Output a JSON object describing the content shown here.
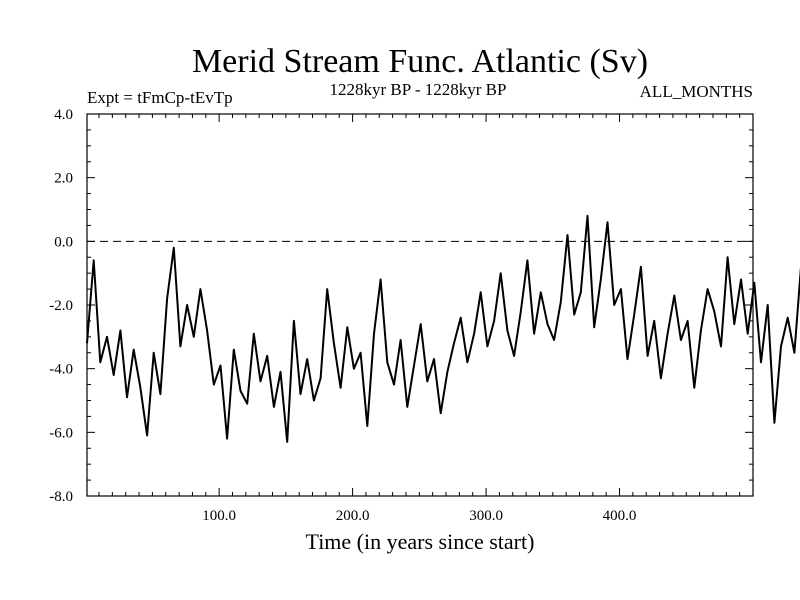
{
  "chart_data": {
    "type": "line",
    "title": "Merid Stream Func. Atlantic (Sv)",
    "subtitle_left": "Expt = tFmCp-tEvTp",
    "subtitle_center": "1228kyr BP - 1228kyr BP",
    "subtitle_right": "ALL_MONTHS",
    "xlabel": "Time (in years since start)",
    "ylabel": "",
    "xlim": [
      1,
      500
    ],
    "ylim": [
      -8,
      4
    ],
    "x_ticks": [
      100,
      200,
      300,
      400
    ],
    "x_tick_labels": [
      "100.0",
      "200.0",
      "300.0",
      "400.0"
    ],
    "y_ticks": [
      -8,
      -6,
      -4,
      -2,
      0,
      2,
      4
    ],
    "y_tick_labels": [
      "-8.0",
      "-6.0",
      "-4.0",
      "-2.0",
      "0.0",
      "2.0",
      "4.0"
    ],
    "reference_line": 0,
    "series": [
      {
        "name": "Merid Stream Func. Atlantic",
        "color": "#000000",
        "x_start": 1,
        "x_step": 5,
        "values": [
          -3.2,
          -0.6,
          -3.8,
          -3.0,
          -4.2,
          -2.8,
          -4.9,
          -3.4,
          -4.6,
          -6.1,
          -3.5,
          -4.8,
          -1.8,
          -0.2,
          -3.3,
          -2.0,
          -3.0,
          -1.5,
          -2.8,
          -4.5,
          -3.9,
          -6.2,
          -3.4,
          -4.7,
          -5.1,
          -2.9,
          -4.4,
          -3.6,
          -5.2,
          -4.1,
          -6.3,
          -2.5,
          -4.8,
          -3.7,
          -5.0,
          -4.3,
          -1.5,
          -3.2,
          -4.6,
          -2.7,
          -4.0,
          -3.5,
          -5.8,
          -2.9,
          -1.2,
          -3.8,
          -4.5,
          -3.1,
          -5.2,
          -3.9,
          -2.6,
          -4.4,
          -3.7,
          -5.4,
          -4.1,
          -3.2,
          -2.4,
          -3.8,
          -2.9,
          -1.6,
          -3.3,
          -2.5,
          -1.0,
          -2.8,
          -3.6,
          -2.2,
          -0.6,
          -2.9,
          -1.6,
          -2.6,
          -3.1,
          -1.9,
          0.2,
          -2.3,
          -1.6,
          0.8,
          -2.7,
          -1.2,
          0.6,
          -2.0,
          -1.5,
          -3.7,
          -2.3,
          -0.8,
          -3.6,
          -2.5,
          -4.3,
          -2.9,
          -1.7,
          -3.1,
          -2.5,
          -4.6,
          -2.8,
          -1.5,
          -2.2,
          -3.3,
          -0.5,
          -2.6,
          -1.2,
          -2.9,
          -1.3,
          -3.8,
          -2.0,
          -5.7,
          -3.3,
          -2.4,
          -3.5,
          -0.8,
          -2.4,
          -1.0,
          -2.6,
          -1.8,
          0.3,
          -2.2,
          -1.0,
          -2.7,
          -1.8,
          -3.9,
          -2.5,
          -1.5,
          -3.3,
          -2.1,
          -2.8,
          -4.5,
          -3.0,
          -3.9,
          -2.2,
          -3.5,
          -1.6,
          -2.6,
          -3.0,
          -1.7,
          -3.1,
          -2.0,
          -1.1,
          -2.4,
          -1.4,
          -2.8,
          -2.0,
          -5.0,
          -3.2,
          -2.3,
          -3.3,
          -1.2,
          -2.1,
          -0.6,
          -2.5,
          1.0,
          -1.8,
          -2.2,
          -3.2,
          -2.3,
          -0.5,
          -3.1,
          -2.5,
          -1.6,
          -0.3,
          -2.1,
          -1.2,
          -2.3,
          -3.0,
          -1.7,
          -0.9,
          -1.5,
          -2.6,
          -0.6,
          -1.9,
          0.9,
          -2.5,
          -1.1,
          -2.8,
          -0.4,
          -3.4,
          -1.2,
          -2.7,
          -0.8,
          -3.5,
          -2.0,
          0.5,
          -1.3,
          -2.2,
          -0.6,
          -1.8,
          -0.3,
          -1.4,
          -2.7,
          -0.7,
          -1.5,
          -2.4,
          -1.1,
          -0.4,
          -1.9,
          0.3,
          -1.2,
          -1.5,
          0.5,
          -2.6,
          -1.0,
          -1.8,
          -0.8,
          -2.2,
          -1.4,
          -2.8,
          -1.5,
          -3.0,
          -0.5,
          -1.6,
          0.9,
          -1.3,
          -0.4,
          -2.1,
          -0.8,
          -1.6,
          0.4,
          -1.7,
          -2.9,
          0.1,
          -1.3,
          1.2,
          -0.8,
          -2.6,
          -0.3,
          -1.4,
          -2.0,
          0.2,
          -1.6,
          -2.4,
          -0.9,
          -2.0,
          -1.2,
          0.6,
          -1.0,
          -2.3,
          -0.6,
          -1.3,
          0.7,
          -0.7,
          -1.8,
          -1.1,
          -2.1,
          -1.2,
          -0.6,
          1.3,
          -1.1,
          1.0,
          -1.6,
          -0.5,
          0.0,
          -1.8,
          -0.9,
          -0.2,
          -1.4,
          2.0,
          -1.2,
          -0.4,
          -1.9,
          -1.0,
          -0.3,
          -4.0,
          2.1,
          -1.4,
          -0.4,
          -1.0,
          1.7
        ]
      }
    ]
  }
}
